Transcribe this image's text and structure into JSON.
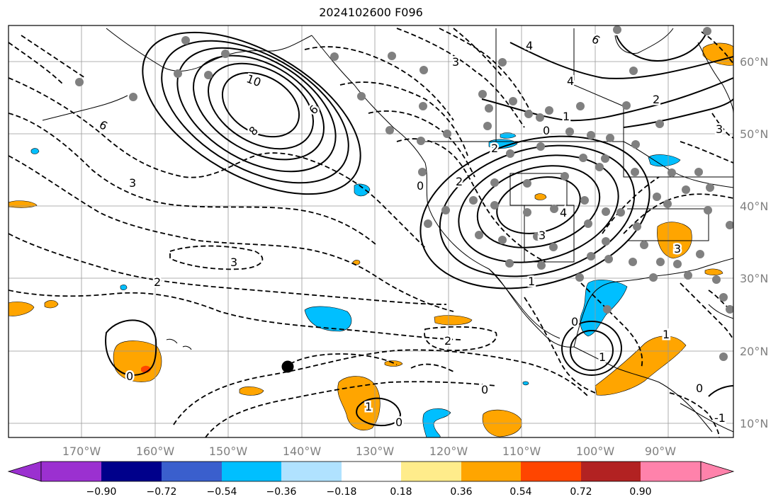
{
  "title": "2024102600 F096",
  "map": {
    "lon_labels": [
      "170°W",
      "160°W",
      "150°W",
      "140°W",
      "130°W",
      "120°W",
      "110°W",
      "100°W",
      "90°W"
    ],
    "lat_labels": [
      "60°N",
      "50°N",
      "40°N",
      "30°N",
      "20°N",
      "10°N"
    ],
    "contour_labels": [
      "10",
      "8",
      "6",
      "6",
      "6",
      "3",
      "3",
      "3",
      "2",
      "2",
      "2",
      "4",
      "4",
      "4",
      "3",
      "1",
      "1",
      "1",
      "1",
      "1",
      "0",
      "0",
      "0",
      "0",
      "0",
      "2",
      "2",
      "-1",
      "0",
      "0",
      "3",
      "3"
    ],
    "colors": {
      "frame": "#000000",
      "grid": "#999999",
      "coast": "#000000",
      "station": "#808080",
      "marker": "#000000",
      "contour": "#000000"
    }
  },
  "colorbar": {
    "ticks": [
      "−0.90",
      "−0.72",
      "−0.54",
      "−0.36",
      "−0.18",
      "0.18",
      "0.36",
      "0.54",
      "0.72",
      "0.90"
    ],
    "levels": [
      -0.9,
      -0.72,
      -0.54,
      -0.36,
      -0.18,
      0.18,
      0.36,
      0.54,
      0.72,
      0.9
    ],
    "colors": [
      "#9b30d0",
      "#00008b",
      "#3a5fcd",
      "#00bfff",
      "#b0e2ff",
      "#ffffff",
      "#ffec8b",
      "#ffa500",
      "#ff4500",
      "#b22222",
      "#ff82ab"
    ],
    "extend": "both"
  }
}
